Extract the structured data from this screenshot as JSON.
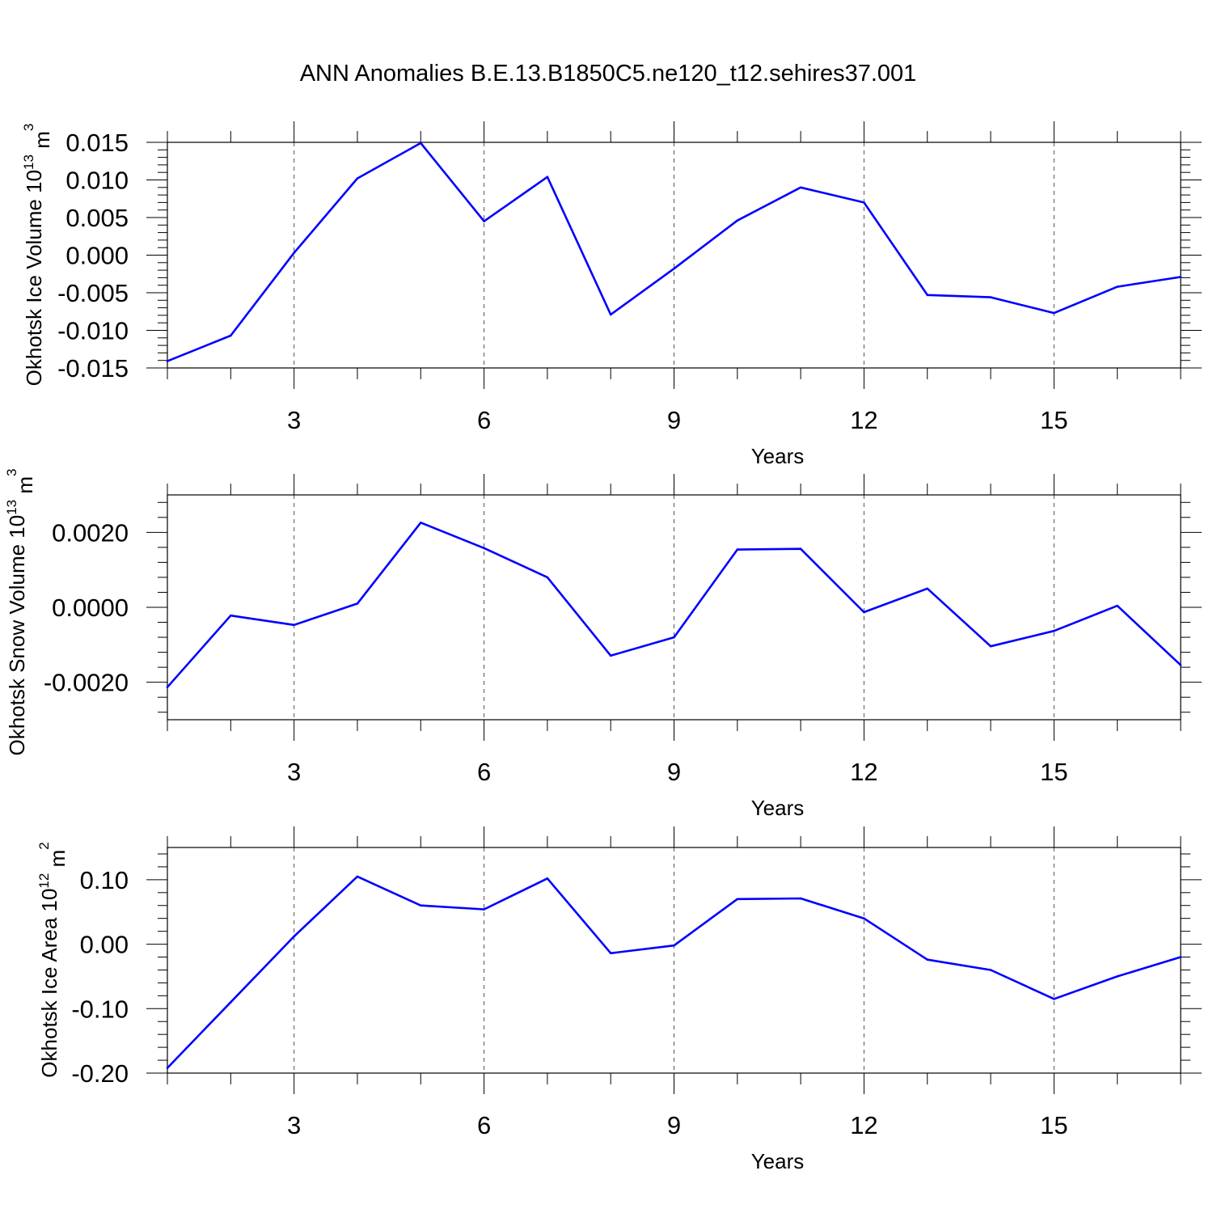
{
  "title": "ANN Anomalies B.E.13.B1850C5.ne120_t12.sehires37.001",
  "colors": {
    "series": "#0000ff",
    "axis": "#000000",
    "grid": "#555555"
  },
  "chart_data": [
    {
      "type": "line",
      "ylabel_main": "Okhotsk Ice Volume 10",
      "ylabel_exp": "13",
      "ylabel_unit": " m",
      "ylabel_unit_exp": "3",
      "xlabel": "Years",
      "xlim": [
        1,
        17
      ],
      "ylim": [
        -0.015,
        0.015
      ],
      "x_ticks": [
        3,
        6,
        9,
        12,
        15
      ],
      "x_tick_labels": [
        "3",
        "6",
        "9",
        "12",
        "15"
      ],
      "y_ticks": [
        -0.015,
        -0.01,
        -0.005,
        0.0,
        0.005,
        0.01,
        0.015
      ],
      "y_tick_labels": [
        "-0.015",
        "-0.010",
        "-0.005",
        "0.000",
        "0.005",
        "0.010",
        "0.015"
      ],
      "grid": "vertical dashed at major x ticks",
      "x": [
        1,
        2,
        3,
        4,
        5,
        6,
        7,
        8,
        9,
        10,
        11,
        12,
        13,
        14,
        15,
        16,
        17
      ],
      "values": [
        -0.0141,
        -0.0107,
        0.0003,
        0.0102,
        0.0149,
        0.0045,
        0.0104,
        -0.0079,
        -0.0018,
        0.0046,
        0.009,
        0.007,
        -0.0053,
        -0.0056,
        -0.0077,
        -0.0042,
        -0.0029
      ]
    },
    {
      "type": "line",
      "ylabel_main": "Okhotsk Snow Volume 10",
      "ylabel_exp": "13",
      "ylabel_unit": " m",
      "ylabel_unit_exp": "3",
      "xlabel": "Years",
      "xlim": [
        1,
        17
      ],
      "ylim": [
        -0.003,
        0.003
      ],
      "x_ticks": [
        3,
        6,
        9,
        12,
        15
      ],
      "x_tick_labels": [
        "3",
        "6",
        "9",
        "12",
        "15"
      ],
      "y_ticks": [
        -0.002,
        0.0,
        0.002
      ],
      "y_tick_labels": [
        "-0.0020",
        "0.0000",
        "0.0020"
      ],
      "grid": "vertical dashed at major x ticks",
      "x": [
        1,
        2,
        3,
        4,
        5,
        6,
        7,
        8,
        9,
        10,
        11,
        12,
        13,
        14,
        15,
        16,
        17
      ],
      "values": [
        -0.00213,
        -0.00022,
        -0.00047,
        0.0001,
        0.00226,
        0.00158,
        0.0008,
        -0.00129,
        -0.0008,
        0.00154,
        0.00156,
        -0.00013,
        0.0005,
        -0.00104,
        -0.00063,
        4e-05,
        -0.00154
      ]
    },
    {
      "type": "line",
      "ylabel_main": "Okhotsk Ice Area 10",
      "ylabel_exp": "12",
      "ylabel_unit": " m",
      "ylabel_unit_exp": "2",
      "xlabel": "Years",
      "xlim": [
        1,
        17
      ],
      "ylim": [
        -0.2,
        0.15
      ],
      "x_ticks": [
        3,
        6,
        9,
        12,
        15
      ],
      "x_tick_labels": [
        "3",
        "6",
        "9",
        "12",
        "15"
      ],
      "y_ticks": [
        -0.2,
        -0.1,
        0.0,
        0.1
      ],
      "y_tick_labels": [
        "-0.20",
        "-0.10",
        "0.00",
        "0.10"
      ],
      "grid": "vertical dashed at major x ticks",
      "x": [
        1,
        2,
        3,
        4,
        5,
        6,
        7,
        8,
        9,
        10,
        11,
        12,
        13,
        14,
        15,
        16,
        17
      ],
      "values": [
        -0.192,
        -0.09,
        0.012,
        0.105,
        0.06,
        0.054,
        0.102,
        -0.014,
        -0.002,
        0.07,
        0.071,
        0.04,
        -0.024,
        -0.04,
        -0.085,
        -0.05,
        -0.02
      ]
    }
  ]
}
